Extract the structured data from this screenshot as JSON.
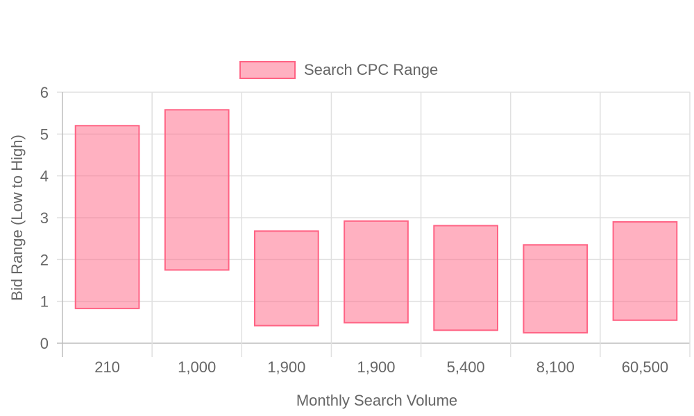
{
  "chart_data": {
    "type": "bar",
    "subtype": "floating-range",
    "categories": [
      "210",
      "1,000",
      "1,900",
      "1,900",
      "5,400",
      "8,100",
      "60,500"
    ],
    "series": [
      {
        "name": "Search CPC Range",
        "ranges": [
          [
            0.83,
            5.2
          ],
          [
            1.75,
            5.58
          ],
          [
            0.42,
            2.68
          ],
          [
            0.49,
            2.92
          ],
          [
            0.31,
            2.81
          ],
          [
            0.25,
            2.35
          ],
          [
            0.55,
            2.9
          ]
        ]
      }
    ],
    "xlabel": "Monthly Search Volume",
    "ylabel": "Bid Range (Low to High)",
    "ylim": [
      0,
      6
    ],
    "yticks": [
      "0",
      "1",
      "2",
      "3",
      "4",
      "5",
      "6"
    ],
    "grid": true,
    "legend_position": "top"
  },
  "colors": {
    "bar_fill": "rgba(255,99,132,0.5)",
    "bar_stroke": "#ff6384",
    "grid": "#e0e0e0",
    "axis": "#bdbdbd",
    "text": "#666666"
  }
}
